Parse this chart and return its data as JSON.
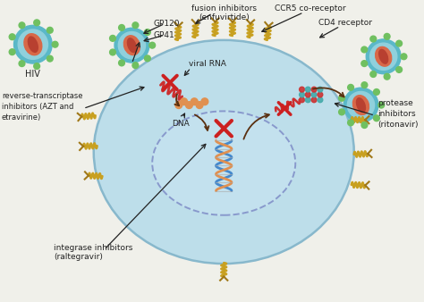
{
  "bg_color": "#f0f0ea",
  "cell_color": "#b8dcea",
  "cell_border_color": "#88b8cc",
  "nucleus_color": "#c8e4f2",
  "nucleus_border_color": "#8899cc",
  "labels": {
    "hiv": "HIV",
    "gp120": "GP120",
    "gp41": "GP41",
    "fusion": "fusion inhibitors\n(enfuvirtide)",
    "ccr5": "CCR5 co-receptor",
    "cd4": "CD4 receptor",
    "viral_rna": "viral RNA",
    "dna": "DNA",
    "rt_inhibitors": "reverse-transcriptase\ninhibitors (AZT and\netravirine)",
    "integrase": "integrase inhibitors\n(raltegravir)",
    "protease": "protease\ninhibitors\n(ritonavir)"
  },
  "hiv_outer": "#5ab8c8",
  "hiv_mid": "#90d0dc",
  "hiv_inner": "#d86848",
  "hiv_core": "#b84030",
  "spike_color": "#70c060",
  "receptor_color": "#c8a020",
  "receptor_dark": "#a07818",
  "arrow_color": "#2a2a2a",
  "red_x_color": "#cc2020",
  "dna_blue": "#4488cc",
  "dna_orange": "#e09050",
  "rna_red": "#cc3030",
  "dot_red": "#cc3333",
  "dot_teal": "#44aaaa",
  "lifecycle_arrow": "#5a3010"
}
